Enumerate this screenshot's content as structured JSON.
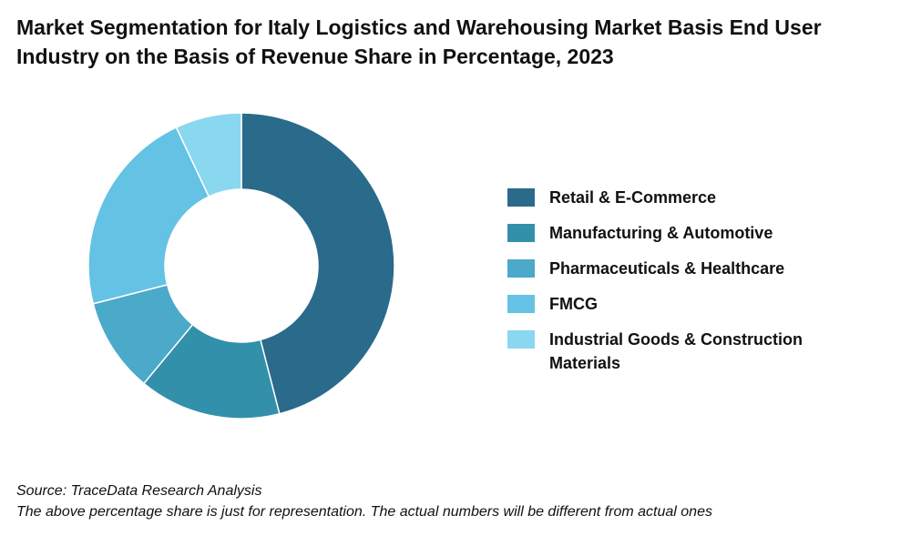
{
  "title": "Market Segmentation for Italy Logistics and Warehousing Market Basis End User Industry on the Basis of Revenue Share in Percentage, 2023",
  "chart_data": {
    "type": "pie",
    "donut": true,
    "title": "Market Segmentation for Italy Logistics and Warehousing Market Basis End User Industry on the Basis of Revenue Share in Percentage, 2023",
    "legend_position": "right",
    "slices": [
      {
        "label": "Retail & E-Commerce",
        "value": 46,
        "color": "#2a6a8a"
      },
      {
        "label": "Manufacturing & Automotive",
        "value": 15,
        "color": "#3390ab"
      },
      {
        "label": "Pharmaceuticals & Healthcare",
        "value": 10,
        "color": "#4ba9ca"
      },
      {
        "label": "FMCG",
        "value": 22,
        "color": "#64c2e4"
      },
      {
        "label": "Industrial Goods & Construction Materials",
        "value": 7,
        "color": "#8ad7f0"
      }
    ]
  },
  "footer": {
    "source": "Source: TraceData Research Analysis",
    "note": "The above percentage share is just for representation. The actual numbers will be different from actual ones"
  }
}
